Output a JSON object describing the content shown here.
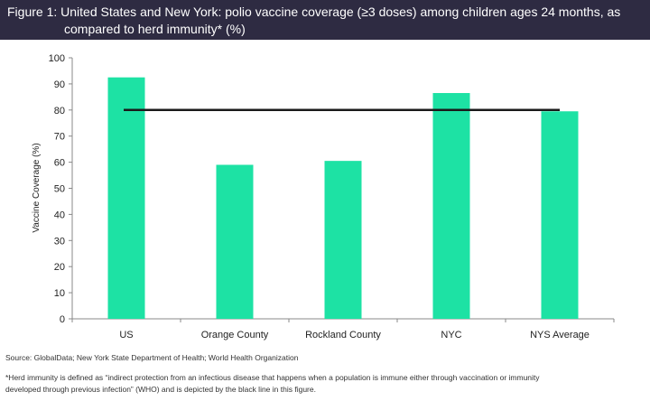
{
  "title": {
    "line1": "Figure 1: United States and New York: polio vaccine coverage (≥3 doses) among children ages 24 months, as",
    "line2": "compared to herd immunity* (%)"
  },
  "chart_data": {
    "type": "bar",
    "categories": [
      "US",
      "Orange County",
      "Rockland County",
      "NYC",
      "NYS Average"
    ],
    "values": [
      92.5,
      59,
      60.5,
      86.5,
      79.5
    ],
    "reference_line": {
      "value": 80,
      "color": "#1a1a1a"
    },
    "ylabel": "Vaccine Coverage (%)",
    "xlabel": "",
    "ylim": [
      0,
      100
    ],
    "yticks": [
      0,
      10,
      20,
      30,
      40,
      50,
      60,
      70,
      80,
      90,
      100
    ],
    "bar_color": "#1de2a4",
    "grid": false,
    "legend": "none"
  },
  "footnotes": {
    "source": "Source: GlobalData; New York State Department of Health; World Health Organization",
    "note_line1": "*Herd immunity is defined as “indirect protection from an infectious disease that happens when a population is immune either through vaccination or immunity",
    "note_line2": "developed through previous infection” (WHO) and is depicted by the black line in this figure."
  },
  "colors": {
    "title_bar": "#2e2b42",
    "title_text": "#ffffff"
  }
}
